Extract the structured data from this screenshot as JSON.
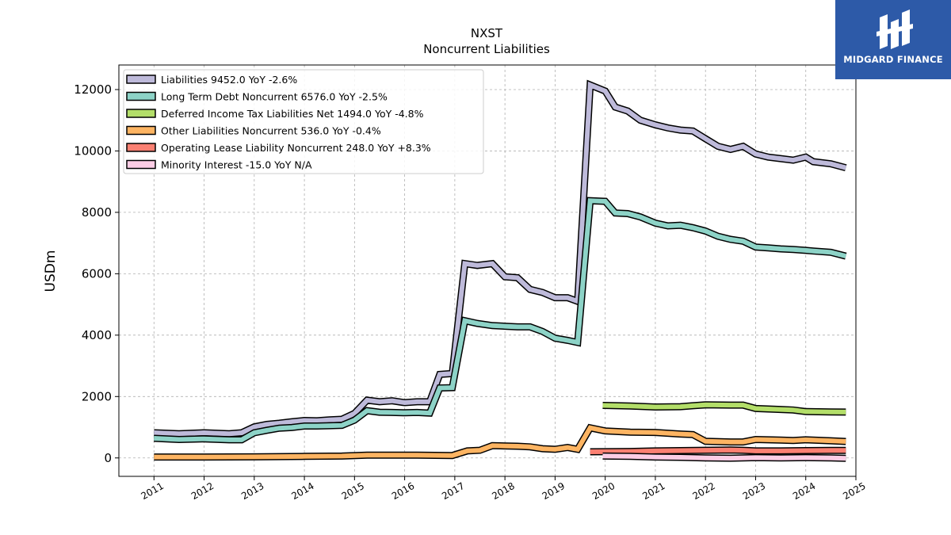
{
  "brand": {
    "name": "MIDGARD FINANCE",
    "color": "#2d5aa8"
  },
  "chart_data": {
    "type": "line",
    "title": "NXST",
    "subtitle": "Noncurrent  Liabilities",
    "ylabel": "USDm",
    "xlabel": "",
    "ylim": [
      -600,
      12800
    ],
    "xlim": [
      2010.3,
      2025.0
    ],
    "yticks": [
      0,
      2000,
      4000,
      6000,
      8000,
      10000,
      12000
    ],
    "xticks": [
      2011,
      2012,
      2013,
      2014,
      2015,
      2016,
      2017,
      2018,
      2019,
      2020,
      2021,
      2022,
      2023,
      2024,
      2025
    ],
    "grid": true,
    "legend_position": "top-left",
    "series": [
      {
        "name": "Liabilities  9452.0 YoY -2.6%",
        "color": "#bebada",
        "x": [
          2011.0,
          2011.5,
          2012.0,
          2012.5,
          2012.75,
          2013.0,
          2013.25,
          2013.5,
          2013.75,
          2014.0,
          2014.25,
          2014.5,
          2014.75,
          2015.0,
          2015.25,
          2015.5,
          2015.75,
          2016.0,
          2016.25,
          2016.5,
          2016.7,
          2016.95,
          2017.2,
          2017.45,
          2017.75,
          2018.0,
          2018.25,
          2018.5,
          2018.75,
          2019.0,
          2019.25,
          2019.45,
          2019.7,
          2020.0,
          2020.2,
          2020.45,
          2020.7,
          2021.0,
          2021.25,
          2021.5,
          2021.75,
          2022.0,
          2022.25,
          2022.5,
          2022.75,
          2023.0,
          2023.25,
          2023.5,
          2023.75,
          2024.0,
          2024.15,
          2024.5,
          2024.8
        ],
        "values": [
          820,
          790,
          820,
          790,
          820,
          1010,
          1090,
          1130,
          1180,
          1220,
          1210,
          1240,
          1260,
          1450,
          1880,
          1830,
          1860,
          1800,
          1830,
          1830,
          2720,
          2750,
          6330,
          6270,
          6330,
          5900,
          5870,
          5490,
          5390,
          5220,
          5220,
          5100,
          12150,
          11950,
          11430,
          11300,
          11000,
          10850,
          10750,
          10680,
          10650,
          10400,
          10150,
          10050,
          10150,
          9900,
          9800,
          9750,
          9700,
          9800,
          9650,
          9580,
          9452
        ]
      },
      {
        "name": "Long Term Debt Noncurrent  6576.0 YoY -2.5%",
        "color": "#8dd3c7",
        "x": [
          2011.0,
          2011.5,
          2012.0,
          2012.5,
          2012.75,
          2013.0,
          2013.25,
          2013.5,
          2013.75,
          2014.0,
          2014.25,
          2014.5,
          2014.75,
          2015.0,
          2015.25,
          2015.5,
          2015.75,
          2016.0,
          2016.25,
          2016.5,
          2016.7,
          2016.95,
          2017.2,
          2017.45,
          2017.75,
          2018.0,
          2018.25,
          2018.5,
          2018.75,
          2019.0,
          2019.25,
          2019.45,
          2019.7,
          2020.0,
          2020.2,
          2020.45,
          2020.7,
          2021.0,
          2021.25,
          2021.5,
          2021.75,
          2022.0,
          2022.25,
          2022.5,
          2022.75,
          2023.0,
          2023.25,
          2023.5,
          2023.75,
          2024.0,
          2024.15,
          2024.5,
          2024.8
        ],
        "values": [
          640,
          600,
          620,
          590,
          590,
          820,
          900,
          970,
          990,
          1040,
          1040,
          1050,
          1060,
          1230,
          1540,
          1490,
          1480,
          1470,
          1480,
          1460,
          2280,
          2290,
          4470,
          4380,
          4310,
          4290,
          4270,
          4270,
          4120,
          3900,
          3830,
          3760,
          8380,
          8360,
          7980,
          7960,
          7850,
          7650,
          7560,
          7580,
          7500,
          7390,
          7220,
          7120,
          7060,
          6870,
          6840,
          6810,
          6790,
          6760,
          6740,
          6700,
          6576
        ]
      },
      {
        "name": "Deferred Income Tax Liabilities Net  1494.0 YoY -4.8%",
        "color": "#b3de69",
        "x": [
          2019.95,
          2020.5,
          2021.0,
          2021.5,
          2021.75,
          2022.0,
          2022.5,
          2022.75,
          2023.0,
          2023.5,
          2023.75,
          2024.0,
          2024.5,
          2024.8
        ],
        "values": [
          1710,
          1690,
          1660,
          1670,
          1700,
          1730,
          1720,
          1720,
          1610,
          1580,
          1560,
          1510,
          1500,
          1494
        ]
      },
      {
        "name": "Other Liabilities Noncurrent  536.0 YoY -0.4%",
        "color": "#fdb462",
        "x": [
          2011.0,
          2012.0,
          2013.0,
          2014.0,
          2014.75,
          2015.25,
          2015.75,
          2016.25,
          2016.95,
          2017.25,
          2017.5,
          2017.75,
          2018.25,
          2018.5,
          2018.75,
          2019.0,
          2019.25,
          2019.45,
          2019.7,
          2020.0,
          2020.5,
          2021.0,
          2021.5,
          2021.75,
          2022.0,
          2022.5,
          2022.75,
          2023.0,
          2023.5,
          2023.75,
          2024.0,
          2024.5,
          2024.8
        ],
        "values": [
          30,
          30,
          35,
          50,
          60,
          90,
          90,
          90,
          80,
          230,
          250,
          400,
          380,
          360,
          300,
          280,
          340,
          280,
          980,
          880,
          840,
          830,
          780,
          760,
          540,
          520,
          520,
          600,
          580,
          570,
          590,
          560,
          536
        ]
      },
      {
        "name": "Operating Lease Liability Noncurrent  248.0 YoY +8.3%",
        "color": "#fb8072",
        "x": [
          2019.7,
          2020.5,
          2021.0,
          2021.5,
          2022.0,
          2022.5,
          2022.75,
          2023.0,
          2023.5,
          2024.0,
          2024.5,
          2024.8
        ],
        "values": [
          200,
          210,
          230,
          240,
          250,
          260,
          250,
          230,
          230,
          240,
          245,
          248
        ]
      },
      {
        "name": "Minority Interest  -15.0 YoY N/A",
        "color": "#fccde5",
        "x": [
          2019.95,
          2020.5,
          2021.0,
          2021.5,
          2022.0,
          2022.5,
          2023.0,
          2023.5,
          2024.0,
          2024.5,
          2024.8
        ],
        "values": [
          60,
          50,
          30,
          20,
          0,
          -10,
          10,
          0,
          10,
          0,
          -15
        ]
      }
    ]
  }
}
